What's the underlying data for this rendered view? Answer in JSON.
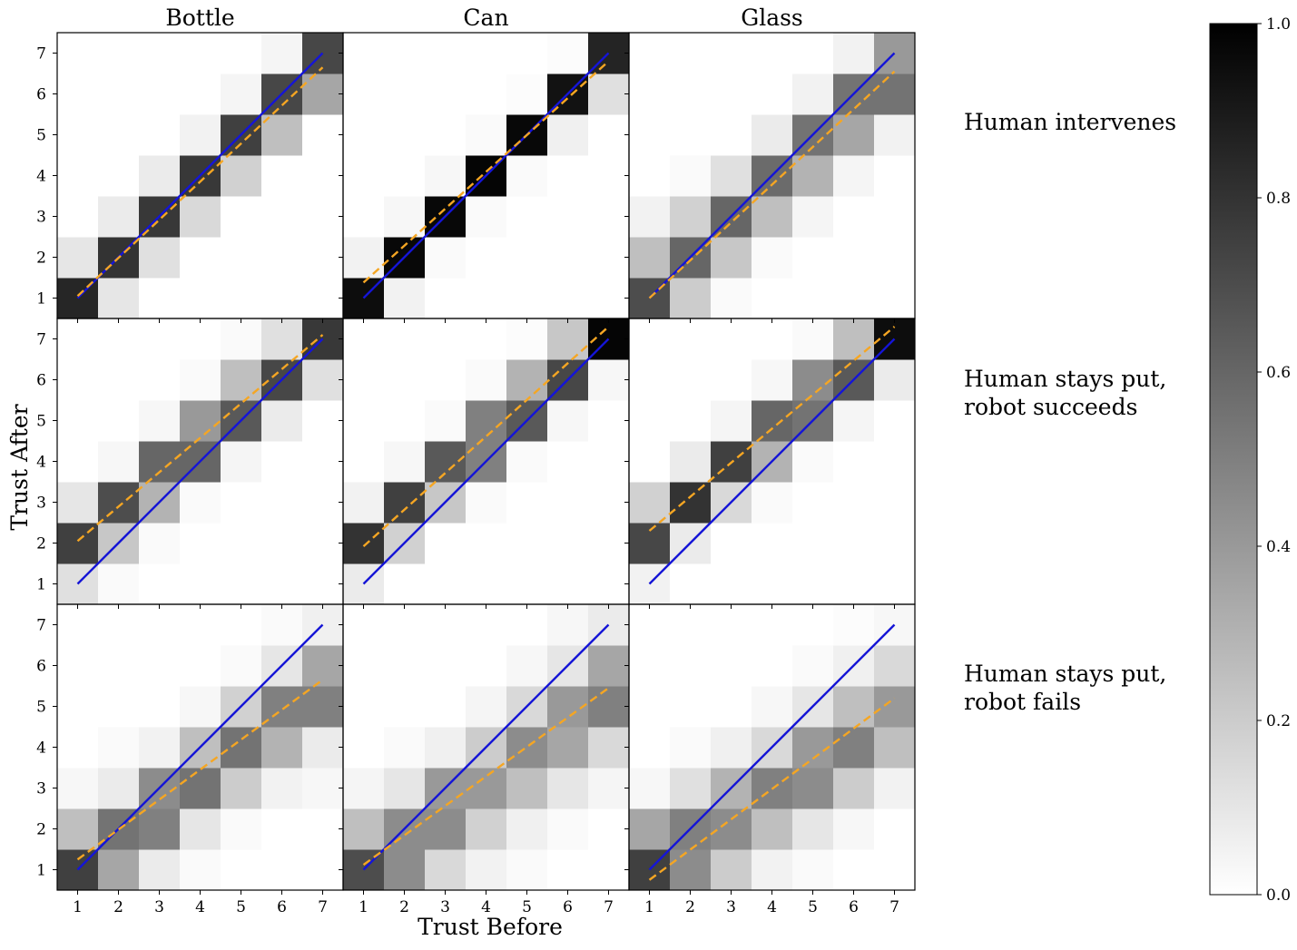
{
  "figure": {
    "col_titles": [
      "Bottle",
      "Can",
      "Glass"
    ],
    "row_titles": [
      [
        "Human intervenes"
      ],
      [
        "Human stays put,",
        "robot succeeds"
      ],
      [
        "Human stays put,",
        "robot fails"
      ]
    ],
    "xlabel": "Trust Before",
    "ylabel": "Trust After",
    "colorbar": {
      "colormap": "Greys",
      "range": [
        0.0,
        1.0
      ],
      "tick_labels": [
        "0.0",
        "0.2",
        "0.4",
        "0.6",
        "0.8",
        "1.0"
      ]
    },
    "colors": {
      "identity_line": "#1515d6",
      "fit_line": "#f5a623"
    }
  },
  "chart_data": {
    "type": "heatmap",
    "xlabel": "Trust Before",
    "ylabel": "Trust After",
    "x_values": [
      1,
      2,
      3,
      4,
      5,
      6,
      7
    ],
    "y_values": [
      1,
      2,
      3,
      4,
      5,
      6,
      7
    ],
    "x_tick_labels": [
      "1",
      "2",
      "3",
      "4",
      "5",
      "6",
      "7"
    ],
    "y_tick_labels": [
      "1",
      "2",
      "3",
      "4",
      "5",
      "6",
      "7"
    ],
    "value_range": [
      0,
      1
    ],
    "note_matrix": "matrix[i][j]: i = Trust After index (1..7), j = Trust Before index (1..7)",
    "panels": [
      {
        "row": "Human intervenes",
        "column": "Bottle",
        "matrix": [
          [
            0.85,
            0.1,
            0.0,
            0.0,
            0.0,
            0.0,
            0.0
          ],
          [
            0.1,
            0.8,
            0.12,
            0.0,
            0.0,
            0.0,
            0.0
          ],
          [
            0.0,
            0.08,
            0.78,
            0.15,
            0.0,
            0.0,
            0.0
          ],
          [
            0.0,
            0.0,
            0.08,
            0.78,
            0.18,
            0.0,
            0.0
          ],
          [
            0.0,
            0.0,
            0.0,
            0.05,
            0.75,
            0.25,
            0.0
          ],
          [
            0.0,
            0.0,
            0.0,
            0.0,
            0.04,
            0.72,
            0.35
          ],
          [
            0.0,
            0.0,
            0.0,
            0.0,
            0.0,
            0.04,
            0.72
          ]
        ],
        "identity_line": [
          [
            1,
            1
          ],
          [
            7,
            7
          ]
        ],
        "fit_line": [
          [
            1,
            1.05
          ],
          [
            7,
            6.65
          ]
        ]
      },
      {
        "row": "Human intervenes",
        "column": "Can",
        "matrix": [
          [
            0.95,
            0.05,
            0.0,
            0.0,
            0.0,
            0.0,
            0.0
          ],
          [
            0.05,
            0.97,
            0.02,
            0.0,
            0.0,
            0.0,
            0.0
          ],
          [
            0.0,
            0.03,
            0.97,
            0.02,
            0.0,
            0.0,
            0.0
          ],
          [
            0.0,
            0.0,
            0.03,
            0.98,
            0.02,
            0.0,
            0.0
          ],
          [
            0.0,
            0.0,
            0.0,
            0.02,
            0.97,
            0.06,
            0.0
          ],
          [
            0.0,
            0.0,
            0.0,
            0.0,
            0.01,
            0.93,
            0.12
          ],
          [
            0.0,
            0.0,
            0.0,
            0.0,
            0.0,
            0.01,
            0.86
          ]
        ],
        "identity_line": [
          [
            1,
            1
          ],
          [
            7,
            7
          ]
        ],
        "fit_line": [
          [
            1,
            1.38
          ],
          [
            7,
            6.8
          ]
        ]
      },
      {
        "row": "Human intervenes",
        "column": "Glass",
        "matrix": [
          [
            0.7,
            0.2,
            0.02,
            0.0,
            0.0,
            0.0,
            0.0
          ],
          [
            0.25,
            0.6,
            0.22,
            0.02,
            0.0,
            0.0,
            0.0
          ],
          [
            0.05,
            0.18,
            0.6,
            0.25,
            0.04,
            0.0,
            0.0
          ],
          [
            0.0,
            0.02,
            0.12,
            0.58,
            0.3,
            0.04,
            0.0
          ],
          [
            0.0,
            0.0,
            0.0,
            0.08,
            0.55,
            0.35,
            0.05
          ],
          [
            0.0,
            0.0,
            0.0,
            0.0,
            0.05,
            0.55,
            0.55
          ],
          [
            0.0,
            0.0,
            0.0,
            0.0,
            0.0,
            0.05,
            0.4
          ]
        ],
        "identity_line": [
          [
            1,
            1
          ],
          [
            7,
            7
          ]
        ],
        "fit_line": [
          [
            1,
            1.0
          ],
          [
            7,
            6.55
          ]
        ]
      },
      {
        "row": "Human stays put, robot succeeds",
        "column": "Bottle",
        "matrix": [
          [
            0.12,
            0.02,
            0.0,
            0.0,
            0.0,
            0.0,
            0.0
          ],
          [
            0.75,
            0.22,
            0.02,
            0.0,
            0.0,
            0.0,
            0.0
          ],
          [
            0.1,
            0.7,
            0.3,
            0.02,
            0.0,
            0.0,
            0.0
          ],
          [
            0.0,
            0.03,
            0.6,
            0.6,
            0.04,
            0.0,
            0.0
          ],
          [
            0.0,
            0.0,
            0.03,
            0.4,
            0.65,
            0.08,
            0.0
          ],
          [
            0.0,
            0.0,
            0.0,
            0.02,
            0.25,
            0.72,
            0.12
          ],
          [
            0.0,
            0.0,
            0.0,
            0.0,
            0.02,
            0.12,
            0.78
          ]
        ],
        "identity_line": [
          [
            1,
            1
          ],
          [
            7,
            7
          ]
        ],
        "fit_line": [
          [
            1,
            2.05
          ],
          [
            7,
            7.1
          ]
        ]
      },
      {
        "row": "Human stays put, robot succeeds",
        "column": "Can",
        "matrix": [
          [
            0.08,
            0.0,
            0.0,
            0.0,
            0.0,
            0.0,
            0.0
          ],
          [
            0.8,
            0.18,
            0.0,
            0.0,
            0.0,
            0.0,
            0.0
          ],
          [
            0.05,
            0.75,
            0.22,
            0.02,
            0.0,
            0.0,
            0.0
          ],
          [
            0.0,
            0.03,
            0.65,
            0.5,
            0.02,
            0.0,
            0.0
          ],
          [
            0.0,
            0.0,
            0.02,
            0.5,
            0.65,
            0.03,
            0.0
          ],
          [
            0.0,
            0.0,
            0.0,
            0.02,
            0.3,
            0.72,
            0.03
          ],
          [
            0.0,
            0.0,
            0.0,
            0.0,
            0.01,
            0.22,
            0.98
          ]
        ],
        "identity_line": [
          [
            1,
            1
          ],
          [
            7,
            7
          ]
        ],
        "fit_line": [
          [
            1,
            1.92
          ],
          [
            7,
            7.3
          ]
        ]
      },
      {
        "row": "Human stays put, robot succeeds",
        "column": "Glass",
        "matrix": [
          [
            0.05,
            0.0,
            0.0,
            0.0,
            0.0,
            0.0,
            0.0
          ],
          [
            0.72,
            0.08,
            0.0,
            0.0,
            0.0,
            0.0,
            0.0
          ],
          [
            0.18,
            0.8,
            0.15,
            0.02,
            0.0,
            0.0,
            0.0
          ],
          [
            0.0,
            0.08,
            0.75,
            0.3,
            0.02,
            0.0,
            0.0
          ],
          [
            0.0,
            0.0,
            0.04,
            0.6,
            0.55,
            0.04,
            0.0
          ],
          [
            0.0,
            0.0,
            0.0,
            0.03,
            0.45,
            0.65,
            0.08
          ],
          [
            0.0,
            0.0,
            0.0,
            0.0,
            0.02,
            0.25,
            0.95
          ]
        ],
        "identity_line": [
          [
            1,
            1
          ],
          [
            7,
            7
          ]
        ],
        "fit_line": [
          [
            1,
            2.3
          ],
          [
            7,
            7.3
          ]
        ]
      },
      {
        "row": "Human stays put, robot fails",
        "column": "Bottle",
        "matrix": [
          [
            0.75,
            0.35,
            0.08,
            0.02,
            0.0,
            0.0,
            0.0
          ],
          [
            0.25,
            0.55,
            0.5,
            0.1,
            0.02,
            0.0,
            0.0
          ],
          [
            0.03,
            0.08,
            0.45,
            0.55,
            0.2,
            0.05,
            0.03
          ],
          [
            0.0,
            0.02,
            0.05,
            0.25,
            0.55,
            0.3,
            0.08
          ],
          [
            0.0,
            0.0,
            0.0,
            0.03,
            0.18,
            0.5,
            0.5
          ],
          [
            0.0,
            0.0,
            0.0,
            0.0,
            0.02,
            0.1,
            0.35
          ],
          [
            0.0,
            0.0,
            0.0,
            0.0,
            0.0,
            0.02,
            0.06
          ]
        ],
        "identity_line": [
          [
            1,
            1
          ],
          [
            7,
            7
          ]
        ],
        "fit_line": [
          [
            1,
            1.25
          ],
          [
            7,
            5.65
          ]
        ]
      },
      {
        "row": "Human stays put, robot fails",
        "column": "Can",
        "matrix": [
          [
            0.7,
            0.45,
            0.15,
            0.05,
            0.02,
            0.0,
            0.0
          ],
          [
            0.25,
            0.45,
            0.45,
            0.18,
            0.06,
            0.02,
            0.0
          ],
          [
            0.04,
            0.1,
            0.4,
            0.4,
            0.25,
            0.1,
            0.04
          ],
          [
            0.0,
            0.02,
            0.06,
            0.2,
            0.45,
            0.35,
            0.15
          ],
          [
            0.0,
            0.0,
            0.0,
            0.04,
            0.15,
            0.4,
            0.5
          ],
          [
            0.0,
            0.0,
            0.0,
            0.0,
            0.03,
            0.1,
            0.35
          ],
          [
            0.0,
            0.0,
            0.0,
            0.0,
            0.0,
            0.03,
            0.08
          ]
        ],
        "identity_line": [
          [
            1,
            1
          ],
          [
            7,
            7
          ]
        ],
        "fit_line": [
          [
            1,
            1.12
          ],
          [
            7,
            5.45
          ]
        ]
      },
      {
        "row": "Human stays put, robot fails",
        "column": "Glass",
        "matrix": [
          [
            0.75,
            0.45,
            0.2,
            0.05,
            0.02,
            0.0,
            0.0
          ],
          [
            0.35,
            0.5,
            0.45,
            0.25,
            0.1,
            0.03,
            0.0
          ],
          [
            0.03,
            0.12,
            0.3,
            0.5,
            0.45,
            0.2,
            0.05
          ],
          [
            0.0,
            0.02,
            0.06,
            0.15,
            0.4,
            0.5,
            0.25
          ],
          [
            0.0,
            0.0,
            0.0,
            0.03,
            0.1,
            0.25,
            0.4
          ],
          [
            0.0,
            0.0,
            0.0,
            0.0,
            0.02,
            0.06,
            0.15
          ],
          [
            0.0,
            0.0,
            0.0,
            0.0,
            0.0,
            0.01,
            0.03
          ]
        ],
        "identity_line": [
          [
            1,
            1
          ],
          [
            7,
            7
          ]
        ],
        "fit_line": [
          [
            1,
            0.75
          ],
          [
            7,
            5.2
          ]
        ]
      }
    ]
  }
}
